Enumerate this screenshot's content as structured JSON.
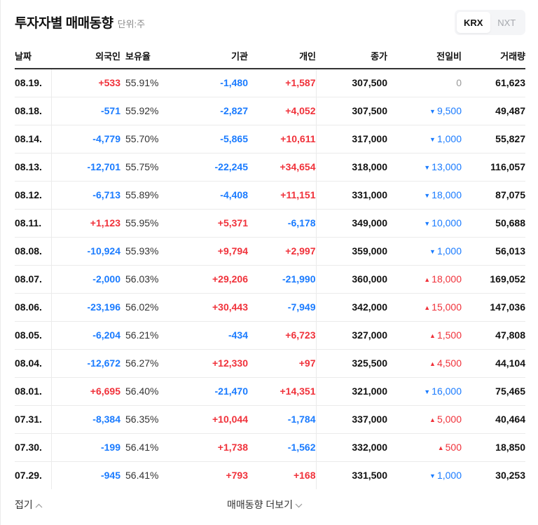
{
  "header": {
    "title": "투자자별 매매동향",
    "unit": "단위:주"
  },
  "market_toggle": {
    "options": [
      "KRX",
      "NXT"
    ],
    "selected": "KRX"
  },
  "table": {
    "columns": [
      "날짜",
      "외국인",
      "보유율",
      "기관",
      "개인",
      "종가",
      "전일비",
      "거래량"
    ],
    "rows": [
      {
        "date": "08.19.",
        "foreign": "+533",
        "foreign_dir": "up",
        "holding": "55.91%",
        "institution": "-1,480",
        "institution_dir": "down",
        "individual": "+1,587",
        "individual_dir": "up",
        "close": "307,500",
        "change": "0",
        "change_dir": "flat",
        "change_icon": "",
        "volume": "61,623"
      },
      {
        "date": "08.18.",
        "foreign": "-571",
        "foreign_dir": "down",
        "holding": "55.92%",
        "institution": "-2,827",
        "institution_dir": "down",
        "individual": "+4,052",
        "individual_dir": "up",
        "close": "307,500",
        "change": "9,500",
        "change_dir": "down",
        "change_icon": "▼",
        "volume": "49,487"
      },
      {
        "date": "08.14.",
        "foreign": "-4,779",
        "foreign_dir": "down",
        "holding": "55.70%",
        "institution": "-5,865",
        "institution_dir": "down",
        "individual": "+10,611",
        "individual_dir": "up",
        "close": "317,000",
        "change": "1,000",
        "change_dir": "down",
        "change_icon": "▼",
        "volume": "55,827"
      },
      {
        "date": "08.13.",
        "foreign": "-12,701",
        "foreign_dir": "down",
        "holding": "55.75%",
        "institution": "-22,245",
        "institution_dir": "down",
        "individual": "+34,654",
        "individual_dir": "up",
        "close": "318,000",
        "change": "13,000",
        "change_dir": "down",
        "change_icon": "▼",
        "volume": "116,057"
      },
      {
        "date": "08.12.",
        "foreign": "-6,713",
        "foreign_dir": "down",
        "holding": "55.89%",
        "institution": "-4,408",
        "institution_dir": "down",
        "individual": "+11,151",
        "individual_dir": "up",
        "close": "331,000",
        "change": "18,000",
        "change_dir": "down",
        "change_icon": "▼",
        "volume": "87,075"
      },
      {
        "date": "08.11.",
        "foreign": "+1,123",
        "foreign_dir": "up",
        "holding": "55.95%",
        "institution": "+5,371",
        "institution_dir": "up",
        "individual": "-6,178",
        "individual_dir": "down",
        "close": "349,000",
        "change": "10,000",
        "change_dir": "down",
        "change_icon": "▼",
        "volume": "50,688"
      },
      {
        "date": "08.08.",
        "foreign": "-10,924",
        "foreign_dir": "down",
        "holding": "55.93%",
        "institution": "+9,794",
        "institution_dir": "up",
        "individual": "+2,997",
        "individual_dir": "up",
        "close": "359,000",
        "change": "1,000",
        "change_dir": "down",
        "change_icon": "▼",
        "volume": "56,013"
      },
      {
        "date": "08.07.",
        "foreign": "-2,000",
        "foreign_dir": "down",
        "holding": "56.03%",
        "institution": "+29,206",
        "institution_dir": "up",
        "individual": "-21,990",
        "individual_dir": "down",
        "close": "360,000",
        "change": "18,000",
        "change_dir": "up",
        "change_icon": "▲",
        "volume": "169,052"
      },
      {
        "date": "08.06.",
        "foreign": "-23,196",
        "foreign_dir": "down",
        "holding": "56.02%",
        "institution": "+30,443",
        "institution_dir": "up",
        "individual": "-7,949",
        "individual_dir": "down",
        "close": "342,000",
        "change": "15,000",
        "change_dir": "up",
        "change_icon": "▲",
        "volume": "147,036"
      },
      {
        "date": "08.05.",
        "foreign": "-6,204",
        "foreign_dir": "down",
        "holding": "56.21%",
        "institution": "-434",
        "institution_dir": "down",
        "individual": "+6,723",
        "individual_dir": "up",
        "close": "327,000",
        "change": "1,500",
        "change_dir": "up",
        "change_icon": "▲",
        "volume": "47,808"
      },
      {
        "date": "08.04.",
        "foreign": "-12,672",
        "foreign_dir": "down",
        "holding": "56.27%",
        "institution": "+12,330",
        "institution_dir": "up",
        "individual": "+97",
        "individual_dir": "up",
        "close": "325,500",
        "change": "4,500",
        "change_dir": "up",
        "change_icon": "▲",
        "volume": "44,104"
      },
      {
        "date": "08.01.",
        "foreign": "+6,695",
        "foreign_dir": "up",
        "holding": "56.40%",
        "institution": "-21,470",
        "institution_dir": "down",
        "individual": "+14,351",
        "individual_dir": "up",
        "close": "321,000",
        "change": "16,000",
        "change_dir": "down",
        "change_icon": "▼",
        "volume": "75,465"
      },
      {
        "date": "07.31.",
        "foreign": "-8,384",
        "foreign_dir": "down",
        "holding": "56.35%",
        "institution": "+10,044",
        "institution_dir": "up",
        "individual": "-1,784",
        "individual_dir": "down",
        "close": "337,000",
        "change": "5,000",
        "change_dir": "up",
        "change_icon": "▲",
        "volume": "40,464"
      },
      {
        "date": "07.30.",
        "foreign": "-199",
        "foreign_dir": "down",
        "holding": "56.41%",
        "institution": "+1,738",
        "institution_dir": "up",
        "individual": "-1,562",
        "individual_dir": "down",
        "close": "332,000",
        "change": "500",
        "change_dir": "up",
        "change_icon": "▲",
        "volume": "18,850"
      },
      {
        "date": "07.29.",
        "foreign": "-945",
        "foreign_dir": "down",
        "holding": "56.41%",
        "institution": "+793",
        "institution_dir": "up",
        "individual": "+168",
        "individual_dir": "up",
        "close": "331,500",
        "change": "1,000",
        "change_dir": "down",
        "change_icon": "▼",
        "volume": "30,253"
      }
    ]
  },
  "footer": {
    "fold_label": "접기",
    "more_label": "매매동향 더보기"
  },
  "colors": {
    "up": "#f0313a",
    "down": "#1a7bff",
    "flat": "#9a9a9a"
  }
}
